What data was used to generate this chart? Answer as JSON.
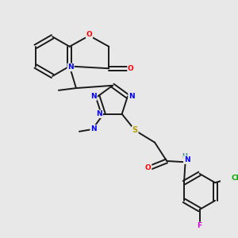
{
  "bg_color": "#e8e8e8",
  "bond_color": "#1a1a1a",
  "atom_colors": {
    "N": "#0000ff",
    "O": "#ff0000",
    "S": "#b8a000",
    "Cl": "#00aa00",
    "F": "#dd00dd",
    "H": "#4a9090",
    "C": "#1a1a1a"
  },
  "figsize": [
    3.0,
    3.0
  ],
  "dpi": 100
}
